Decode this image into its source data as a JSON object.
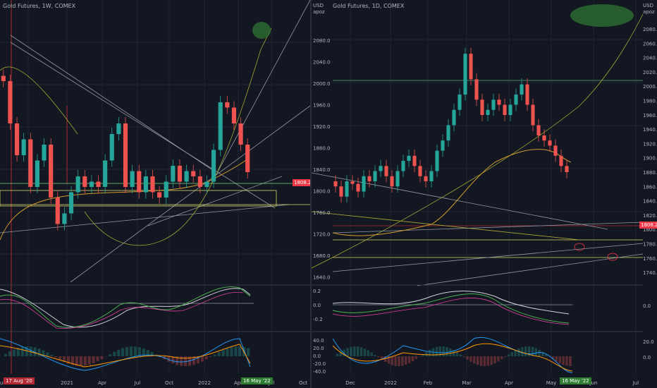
{
  "left": {
    "title": "Gold Futures, 1W, COMEX",
    "price_tag": "1808.2",
    "date_tag_start": "17 Aug '20",
    "date_tag_end": "16 May '22",
    "x_labels": [
      "Jul",
      "Oct",
      "2021",
      "Apr",
      "Jul",
      "Oct",
      "2022",
      "Apr",
      "Jul",
      "Oct"
    ]
  },
  "right": {
    "title": "Gold Futures, 1D, COMEX",
    "usd": "USD",
    "scale_mode": "apoz",
    "price_tag": "1808.2",
    "date_tag_end": "16 May '22",
    "y_labels_left": [
      "2080.0",
      "2040.0",
      "2000.0",
      "1960.0",
      "1920.0",
      "1880.0",
      "1840.0",
      "1800.0",
      "1760.0",
      "1720.0",
      "1680.0",
      "1640.0"
    ],
    "y_labels_right": [
      "2080.0",
      "2060.0",
      "2040.0",
      "2020.0",
      "2000.0",
      "1980.0",
      "1960.0",
      "1940.0",
      "1920.0",
      "1900.0",
      "1880.0",
      "1860.0",
      "1840.0",
      "1820.0",
      "1800.0",
      "1780.0",
      "1760.0",
      "1740.0"
    ],
    "osc1_labels_left": [
      "0.2",
      "0.0",
      "-0.2"
    ],
    "osc1_labels_right": [
      "0.0"
    ],
    "osc2_labels_left": [
      "40.0",
      "20.0",
      "0.0",
      "-20.0",
      "-40.0"
    ],
    "osc2_labels_right": [
      "20.0",
      "0.0"
    ],
    "x_labels": [
      "Dec",
      "2022",
      "Feb",
      "Mar",
      "Apr",
      "May",
      "Jun",
      "Jul"
    ]
  },
  "chart_data": [
    {
      "type": "candlestick",
      "title": "Gold Futures, 1W, COMEX",
      "series": [
        {
          "name": "close",
          "values": [
            1980,
            1900,
            1840,
            1870,
            1780,
            1830,
            1860,
            1760,
            1710,
            1730,
            1770,
            1800,
            1780,
            1790,
            1780,
            1830,
            1880,
            1900,
            1780,
            1810,
            1770,
            1800,
            1770,
            1760,
            1790,
            1820,
            1790,
            1810,
            1800,
            1780,
            1790,
            1850,
            1940,
            1930,
            1900,
            1860,
            1808
          ]
        }
      ],
      "price_tag": 1808.2,
      "colors": {
        "up": "#26a69a",
        "down": "#ef5350"
      }
    },
    {
      "type": "candlestick",
      "title": "Gold Futures, 1D, COMEX",
      "series": [
        {
          "name": "close",
          "values": [
            1780,
            1760,
            1790,
            1785,
            1770,
            1800,
            1790,
            1810,
            1820,
            1800,
            1780,
            1810,
            1830,
            1840,
            1820,
            1800,
            1790,
            1810,
            1850,
            1870,
            1900,
            1930,
            1960,
            2040,
            1990,
            1950,
            1920,
            1930,
            1950,
            1940,
            1920,
            1940,
            1960,
            1980,
            1940,
            1900,
            1880,
            1870,
            1860,
            1840,
            1820,
            1808
          ]
        }
      ],
      "price_tag": 1808.2,
      "y_range": [
        1640,
        2090
      ],
      "colors": {
        "up": "#26a69a",
        "down": "#ef5350"
      }
    }
  ]
}
